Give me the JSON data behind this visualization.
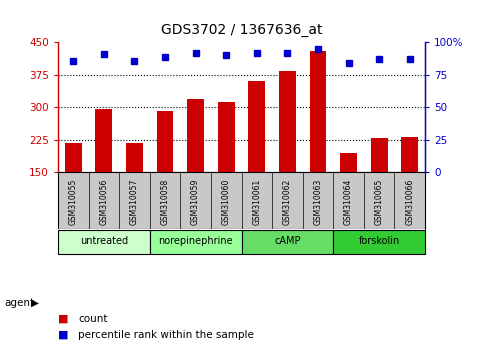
{
  "title": "GDS3702 / 1367636_at",
  "samples": [
    "GSM310055",
    "GSM310056",
    "GSM310057",
    "GSM310058",
    "GSM310059",
    "GSM310060",
    "GSM310061",
    "GSM310062",
    "GSM310063",
    "GSM310064",
    "GSM310065",
    "GSM310066"
  ],
  "counts": [
    218,
    297,
    218,
    291,
    320,
    313,
    360,
    383,
    430,
    193,
    228,
    230
  ],
  "percentile_ranks": [
    86,
    91,
    86,
    89,
    92,
    90,
    92,
    92,
    95,
    84,
    87,
    87
  ],
  "agents": [
    {
      "label": "untreated",
      "start": 0,
      "end": 3,
      "color": "#ccffcc"
    },
    {
      "label": "norepinephrine",
      "start": 3,
      "end": 6,
      "color": "#99ff99"
    },
    {
      "label": "cAMP",
      "start": 6,
      "end": 9,
      "color": "#66dd66"
    },
    {
      "label": "forskolin",
      "start": 9,
      "end": 12,
      "color": "#33cc33"
    }
  ],
  "ylim_left": [
    150,
    450
  ],
  "ylim_right": [
    0,
    100
  ],
  "yticks_left": [
    150,
    225,
    300,
    375,
    450
  ],
  "yticks_right": [
    0,
    25,
    50,
    75,
    100
  ],
  "bar_color": "#cc0000",
  "dot_color": "#0000cc",
  "bar_bottom": 150,
  "background_color": "#ffffff",
  "plot_bg": "#ffffff",
  "grid_color": "#000000",
  "sample_bg": "#c8c8c8",
  "agent_label": "agent",
  "legend_count": "count",
  "legend_percentile": "percentile rank within the sample",
  "title_fontsize": 10
}
